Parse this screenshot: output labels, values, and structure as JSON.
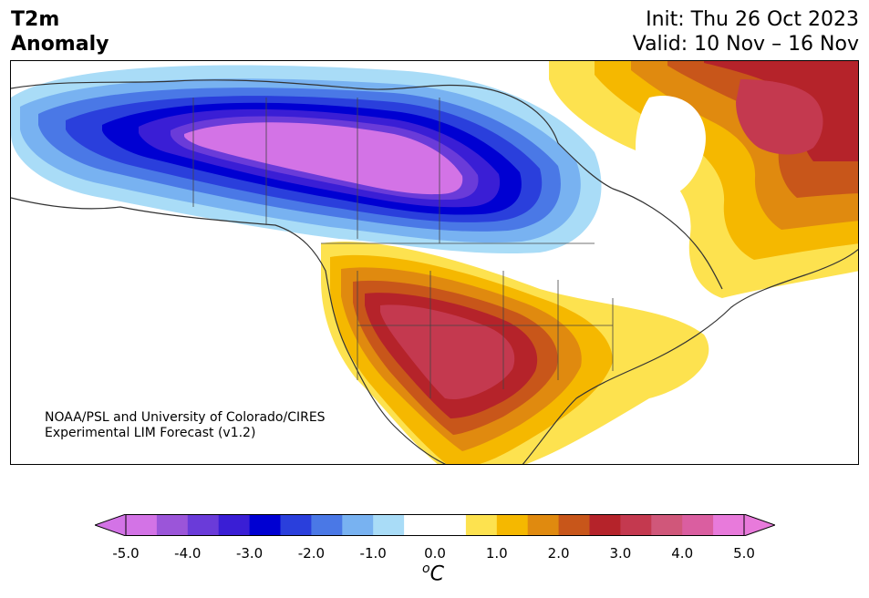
{
  "title": {
    "line1": "T2m",
    "line2": "Anomaly"
  },
  "forecast": {
    "init": "Init: Thu 26 Oct 2023",
    "valid": "Valid: 10 Nov – 16 Nov"
  },
  "credit": {
    "line1": "NOAA/PSL and University of Colorado/CIRES",
    "line2": "Experimental LIM Forecast (v1.2)"
  },
  "colorbar": {
    "units_sup": "o",
    "units_main": "C",
    "ticks": [
      "-5.0",
      "-4.0",
      "-3.0",
      "-2.0",
      "-1.0",
      "0.0",
      "1.0",
      "2.0",
      "3.0",
      "4.0",
      "5.0"
    ],
    "colors": [
      "#d373e6",
      "#9b55d9",
      "#6a3bd9",
      "#3a1ed5",
      "#0000d2",
      "#2a3fdc",
      "#4a78e6",
      "#78b2f1",
      "#a9dcf7",
      "#ffffff",
      "#ffffff",
      "#fde24f",
      "#f5b800",
      "#e08a0f",
      "#c8561a",
      "#b5232a",
      "#c4394f",
      "#d0577a",
      "#da5ea0",
      "#e87adb"
    ],
    "under_color": "#d373e6",
    "over_color": "#e87adb"
  }
}
